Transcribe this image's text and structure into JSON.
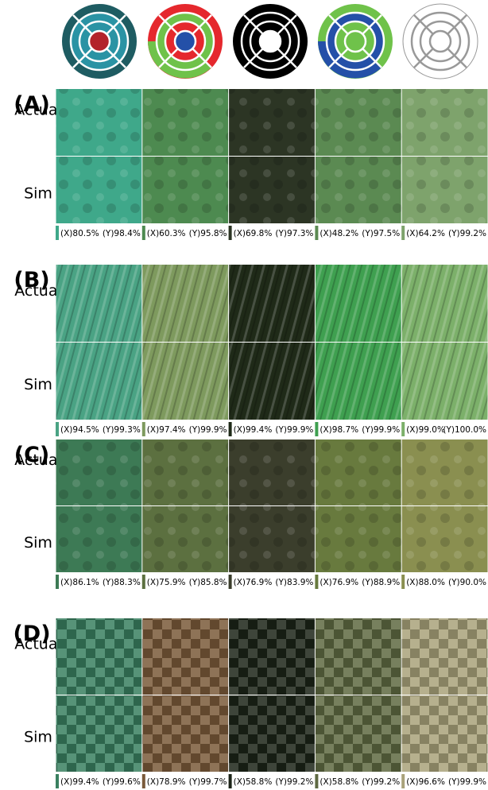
{
  "panels": [
    {
      "label": "(A)",
      "rows": [
        "Actual",
        "Sim"
      ],
      "scores": [
        {
          "x": "(X)80.5%",
          "y": "(Y)98.4%"
        },
        {
          "x": "(X)60.3%",
          "y": "(Y)95.8%"
        },
        {
          "x": "(X)69.8%",
          "y": "(Y)97.3%"
        },
        {
          "x": "(X)48.2%",
          "y": "(Y)97.5%"
        },
        {
          "x": "(X)64.2%",
          "y": "(Y)99.2%"
        }
      ]
    },
    {
      "label": "(B)",
      "rows": [
        "Actual",
        "Sim"
      ],
      "scores": [
        {
          "x": "(X)94.5%",
          "y": "(Y)99.3%"
        },
        {
          "x": "(X)97.4%",
          "y": "(Y)99.9%"
        },
        {
          "x": "(X)99.4%",
          "y": "(Y)99.9%"
        },
        {
          "x": "(X)98.7%",
          "y": "(Y)99.9%"
        },
        {
          "x": "(X)99.0%",
          "y": "(Y)100.0%"
        }
      ]
    },
    {
      "label": "(C)",
      "rows": [
        "Actual",
        "Sim"
      ],
      "scores": [
        {
          "x": "(X)86.1%",
          "y": "(Y)88.3%"
        },
        {
          "x": "(X)75.9%",
          "y": "(Y)85.8%"
        },
        {
          "x": "(X)76.9%",
          "y": "(Y)83.9%"
        },
        {
          "x": "(X)76.9%",
          "y": "(Y)88.9%"
        },
        {
          "x": "(X)88.0%",
          "y": "(Y)90.0%"
        }
      ]
    },
    {
      "label": "(D)",
      "rows": [
        "Actual",
        "Sim"
      ],
      "scores": [
        {
          "x": "(X)99.4%",
          "y": "(Y)99.6%"
        },
        {
          "x": "(X)78.9%",
          "y": "(Y)99.7%"
        },
        {
          "x": "(X)58.8%",
          "y": "(Y)99.2%"
        },
        {
          "x": "(X)58.8%",
          "y": "(Y)99.2%"
        },
        {
          "x": "(X)96.6%",
          "y": "(Y)99.9%"
        }
      ]
    }
  ]
}
